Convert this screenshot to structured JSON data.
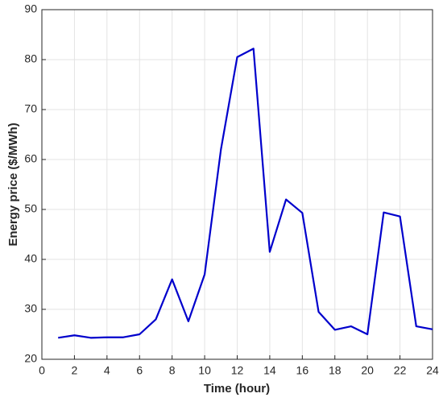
{
  "chart_data": {
    "type": "line",
    "x_label": "Time (hour)",
    "y_label": "Energy price ($/MWh)",
    "x": [
      1,
      2,
      3,
      4,
      5,
      6,
      7,
      8,
      9,
      10,
      11,
      12,
      13,
      14,
      15,
      16,
      17,
      18,
      19,
      20,
      21,
      22,
      23,
      24
    ],
    "series": [
      {
        "color": "#0000cc",
        "values": [
          24.3,
          24.8,
          24.3,
          24.4,
          24.4,
          25,
          28,
          36,
          27.6,
          37,
          62,
          80.5,
          82.2,
          41.5,
          52,
          49.3,
          29.5,
          25.9,
          26.6,
          25,
          49.4,
          48.6,
          26.6,
          26
        ]
      }
    ],
    "xlim": [
      0,
      24
    ],
    "xticks": [
      0,
      2,
      4,
      6,
      8,
      10,
      12,
      14,
      16,
      18,
      20,
      22,
      24
    ],
    "ylim": [
      20,
      90
    ],
    "yticks": [
      20,
      30,
      40,
      50,
      60,
      70,
      80,
      90
    ],
    "grid": true
  }
}
